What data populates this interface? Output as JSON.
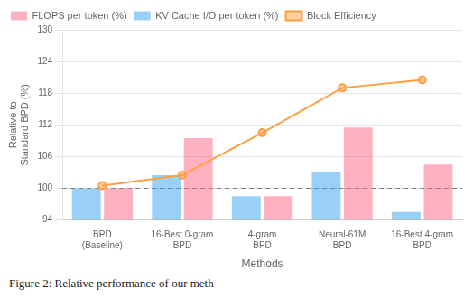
{
  "chart_data": {
    "type": "bar",
    "categories": [
      "BPD\n(Baseline)",
      "16-Best 0-gram\nBPD",
      "4-gram\nBPD",
      "Neural-61M\nBPD",
      "16-Best 4-gram\nBPD"
    ],
    "series": [
      {
        "name": "KV Cache I/O per token (%)",
        "values": [
          100.0,
          102.5,
          98.5,
          103.0,
          95.5
        ]
      },
      {
        "name": "FLOPS per token (%)",
        "values": [
          100.0,
          109.5,
          98.5,
          111.5,
          104.5
        ]
      },
      {
        "name": "Block Efficiency",
        "type": "line",
        "marker": "circle",
        "values": [
          100.5,
          102.5,
          110.5,
          119.0,
          120.5
        ]
      }
    ],
    "reference_line": 100,
    "xlabel": "Methods",
    "ylabel": "Relative to\nStandard BPD (%)",
    "ylim": [
      94,
      130
    ],
    "yticks": [
      94,
      100,
      106,
      112,
      118,
      124,
      130
    ],
    "grid": true,
    "legend": "upper left",
    "caption": "Figure 2: Relative performance of our meth-"
  }
}
